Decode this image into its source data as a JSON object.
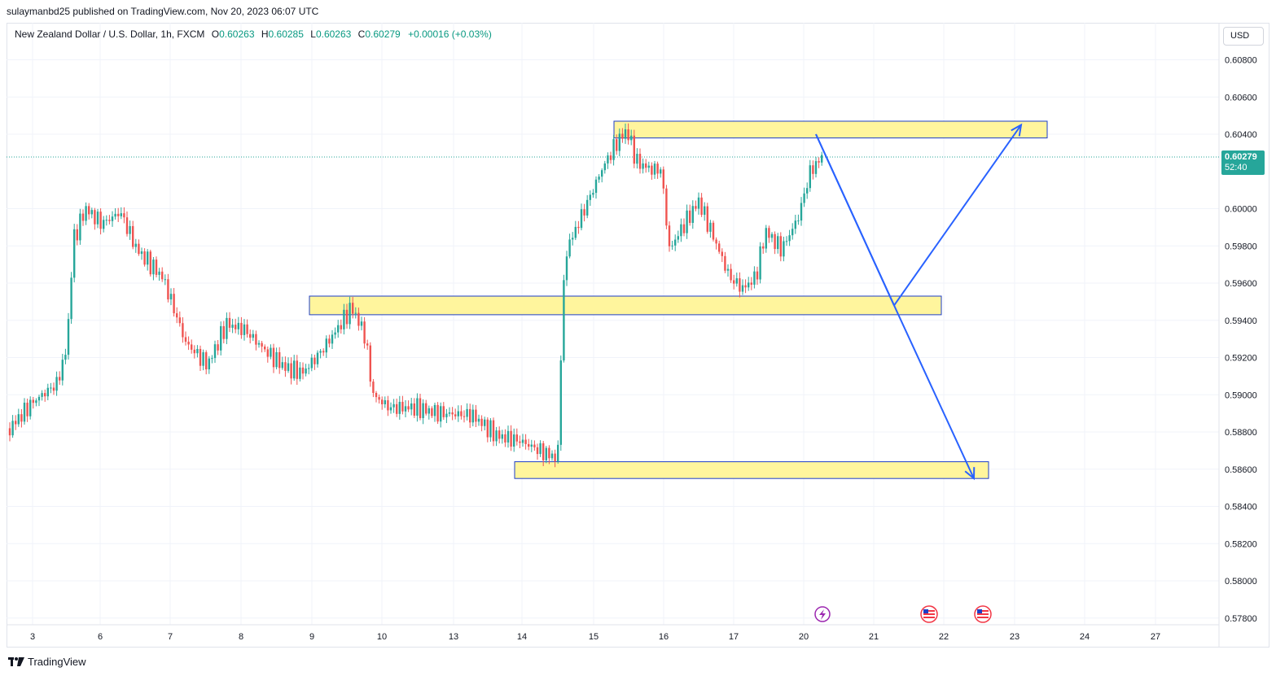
{
  "header": {
    "publish_text": "sulaymanbd25 published on TradingView.com, Nov 20, 2023 06:07 UTC"
  },
  "legend": {
    "symbol": "New Zealand Dollar / U.S. Dollar, 1h, FXCM",
    "open_label": "O",
    "open_value": "0.60263",
    "high_label": "H",
    "high_value": "0.60285",
    "low_label": "L",
    "low_value": "0.60263",
    "close_label": "C",
    "close_value": "0.60279",
    "change": "+0.00016 (+0.03%)"
  },
  "price_axis": {
    "currency": "USD",
    "ticks": [
      "0.60800",
      "0.60600",
      "0.60400",
      "0.60000",
      "0.59800",
      "0.59600",
      "0.59400",
      "0.59200",
      "0.59000",
      "0.58800",
      "0.58600",
      "0.58400",
      "0.58200",
      "0.58000",
      "0.57800"
    ],
    "current_price": "0.60279",
    "countdown": "52:40"
  },
  "time_axis": {
    "ticks": [
      "3",
      "6",
      "7",
      "8",
      "9",
      "10",
      "13",
      "14",
      "15",
      "16",
      "17",
      "20",
      "21",
      "22",
      "23",
      "24",
      "27"
    ]
  },
  "brand": {
    "name": "TradingView"
  },
  "colors": {
    "up": "#26a69a",
    "down": "#ef5350",
    "zone_fill": "#fff59d",
    "zone_border": "#1e3ec7",
    "arrow": "#2962ff",
    "arrow_light": "#9fa8da",
    "event_lightning": "#9c27b0",
    "event_flag": "#f23645"
  },
  "chart_data": {
    "type": "candlestick",
    "title": "New Zealand Dollar / U.S. Dollar, 1h, FXCM",
    "ylim": [
      0.5775,
      0.6092
    ],
    "y_ticks": [
      0.608,
      0.606,
      0.604,
      0.6,
      0.598,
      0.596,
      0.594,
      0.592,
      0.59,
      0.588,
      0.586,
      0.584,
      0.582,
      0.58,
      0.578
    ],
    "x_ticks": [
      "3",
      "6",
      "7",
      "8",
      "9",
      "10",
      "13",
      "14",
      "15",
      "16",
      "17",
      "20",
      "21",
      "22",
      "23",
      "24",
      "27"
    ],
    "current_price": 0.60279,
    "price_path": [
      {
        "x": "3",
        "price": 0.5882
      },
      {
        "x": "6",
        "price": 0.5898
      },
      {
        "x": "6",
        "price": 0.5998
      },
      {
        "x": "7",
        "price": 0.5978
      },
      {
        "x": "7",
        "price": 0.5928
      },
      {
        "x": "8",
        "price": 0.5938
      },
      {
        "x": "9",
        "price": 0.5912
      },
      {
        "x": "9",
        "price": 0.5945
      },
      {
        "x": "10",
        "price": 0.5895
      },
      {
        "x": "13",
        "price": 0.5896
      },
      {
        "x": "14",
        "price": 0.5866
      },
      {
        "x": "14",
        "price": 0.5942
      },
      {
        "x": "15",
        "price": 0.6022
      },
      {
        "x": "15",
        "price": 0.605
      },
      {
        "x": "16",
        "price": 0.6018
      },
      {
        "x": "16",
        "price": 0.5978
      },
      {
        "x": "16",
        "price": 0.601
      },
      {
        "x": "17",
        "price": 0.5962
      },
      {
        "x": "17",
        "price": 0.5996
      },
      {
        "x": "20",
        "price": 0.6028
      }
    ],
    "zones": [
      {
        "from": "15",
        "to": "23",
        "price_low": 0.6038,
        "price_high": 0.6047
      },
      {
        "from": "9",
        "to": "22",
        "price_low": 0.5943,
        "price_high": 0.5953
      },
      {
        "from": "14",
        "to": "22",
        "price_low": 0.5855,
        "price_high": 0.5864
      }
    ],
    "projection": [
      {
        "x": "20",
        "price": 0.604
      },
      {
        "x": "21",
        "price": 0.5948
      },
      {
        "x": "23",
        "price": 0.6045
      },
      {
        "x": "22",
        "price": 0.5855
      }
    ]
  }
}
